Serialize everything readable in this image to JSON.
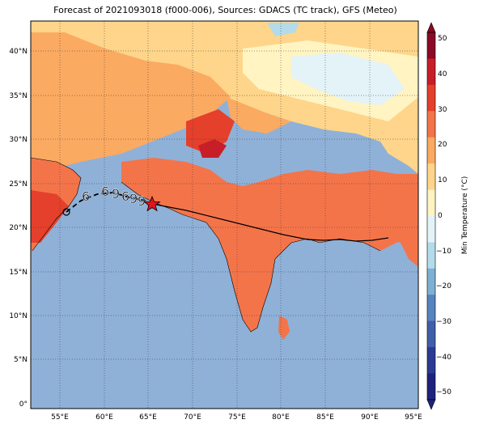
{
  "title": "Forecast of 2021093018 (f000-006), Sources: GDACS (TC track), GFS (Meteo)",
  "map": {
    "lon_ticks": [
      "55°E",
      "60°E",
      "65°E",
      "70°E",
      "75°E",
      "80°E",
      "85°E",
      "90°E",
      "95°E"
    ],
    "lat_ticks": [
      "40°N",
      "35°N",
      "30°N",
      "25°N",
      "20°N",
      "15°N",
      "10°N",
      "5°N",
      "0°"
    ],
    "gridlines": true
  },
  "colorbar": {
    "label": "Min Temperature (°C)",
    "ticks": [
      "50",
      "40",
      "30",
      "20",
      "10",
      "0",
      "−10",
      "−20",
      "−30",
      "−40",
      "−50"
    ],
    "colors": [
      "#8b0a25",
      "#c81e27",
      "#e5402b",
      "#f4744a",
      "#fbaa62",
      "#fed58a",
      "#fff4c2",
      "#e3f3f8",
      "#b4dbe9",
      "#7eb0d4",
      "#5584be",
      "#3f5fa9",
      "#2b3a93",
      "#1f237d"
    ]
  },
  "track": {
    "current_position_marker": "red-star",
    "past_track_markers": "cyclone-symbols",
    "end_marker": "circle"
  }
}
